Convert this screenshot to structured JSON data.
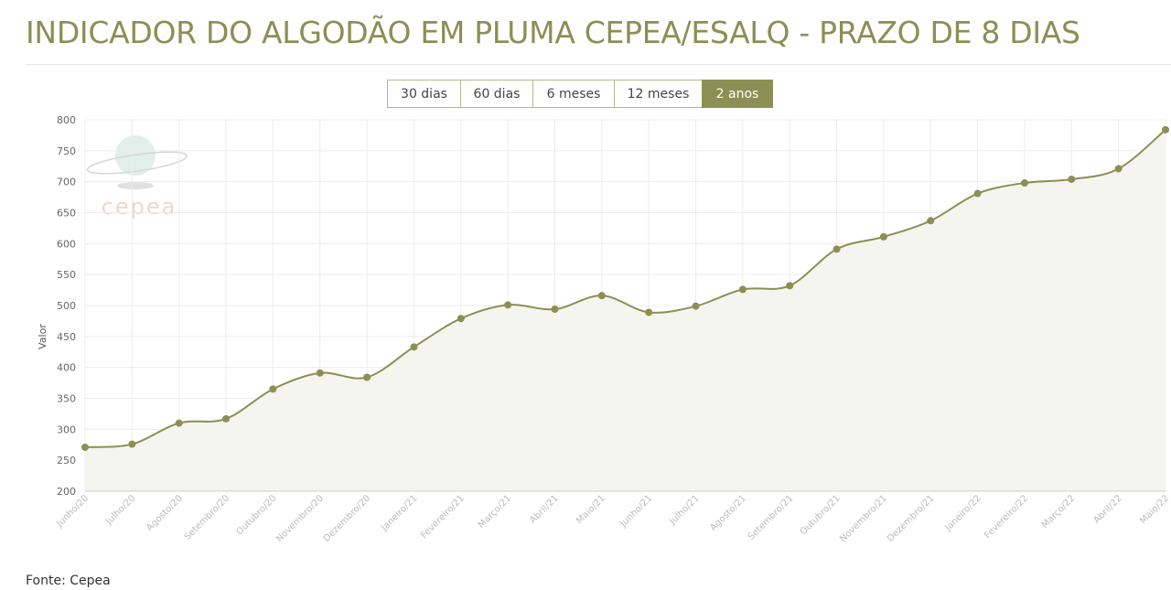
{
  "header": {
    "title": "INDICADOR DO ALGODÃO EM PLUMA CEPEA/ESALQ - PRAZO DE 8 DIAS"
  },
  "range_buttons": {
    "items": [
      "30 dias",
      "60 dias",
      "6 meses",
      "12 meses",
      "2 anos"
    ],
    "active": 4
  },
  "logo": "cepea",
  "chart_data": {
    "type": "line",
    "y_label": "Valor",
    "categories": [
      "Junho/20",
      "Julho/20",
      "Agosto/20",
      "Setembro/20",
      "Outubro/20",
      "Novembro/20",
      "Dezembro/20",
      "Janeiro/21",
      "Fevereiro/21",
      "Março/21",
      "Abril/21",
      "Maio/21",
      "Junho/21",
      "Julho/21",
      "Agosto/21",
      "Setembro/21",
      "Outubro/21",
      "Novembro/21",
      "Dezembro/21",
      "Janeiro/22",
      "Fevereiro/22",
      "Março/22",
      "Abril/22",
      "Maio/22"
    ],
    "values": [
      271,
      276,
      310,
      317,
      365,
      391,
      384,
      433,
      479,
      501,
      494,
      516,
      489,
      499,
      526,
      532,
      591,
      611,
      637,
      681,
      698,
      704,
      721,
      784
    ],
    "color": "#8c8f54",
    "area": true,
    "grid": true,
    "ylim": [
      200,
      800
    ],
    "yticks": [
      200,
      250,
      300,
      350,
      400,
      450,
      500,
      550,
      600,
      650,
      700,
      750,
      800
    ]
  },
  "footer": {
    "source": "Fonte: Cepea"
  }
}
